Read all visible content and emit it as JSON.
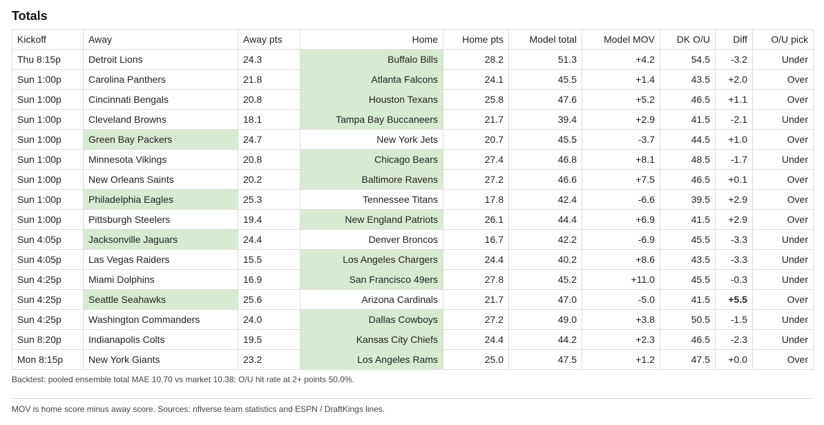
{
  "title": "Totals",
  "columns": [
    "Kickoff",
    "Away",
    "Away pts",
    "Home",
    "Home pts",
    "Model total",
    "Model MOV",
    "DK O/U",
    "Diff",
    "O/U pick"
  ],
  "rows": [
    {
      "kickoff": "Thu 8:15p",
      "away": "Detroit Lions",
      "away_pts": "24.3",
      "home": "Buffalo Bills",
      "home_pts": "28.2",
      "model_total": "51.3",
      "model_mov": "+4.2",
      "dk_ou": "54.5",
      "diff": "-3.2",
      "pick": "Under",
      "winner": "home",
      "diff_bold": false
    },
    {
      "kickoff": "Sun 1:00p",
      "away": "Carolina Panthers",
      "away_pts": "21.8",
      "home": "Atlanta Falcons",
      "home_pts": "24.1",
      "model_total": "45.5",
      "model_mov": "+1.4",
      "dk_ou": "43.5",
      "diff": "+2.0",
      "pick": "Over",
      "winner": "home",
      "diff_bold": false
    },
    {
      "kickoff": "Sun 1:00p",
      "away": "Cincinnati Bengals",
      "away_pts": "20.8",
      "home": "Houston Texans",
      "home_pts": "25.8",
      "model_total": "47.6",
      "model_mov": "+5.2",
      "dk_ou": "46.5",
      "diff": "+1.1",
      "pick": "Over",
      "winner": "home",
      "diff_bold": false
    },
    {
      "kickoff": "Sun 1:00p",
      "away": "Cleveland Browns",
      "away_pts": "18.1",
      "home": "Tampa Bay Buccaneers",
      "home_pts": "21.7",
      "model_total": "39.4",
      "model_mov": "+2.9",
      "dk_ou": "41.5",
      "diff": "-2.1",
      "pick": "Under",
      "winner": "home",
      "diff_bold": false
    },
    {
      "kickoff": "Sun 1:00p",
      "away": "Green Bay Packers",
      "away_pts": "24.7",
      "home": "New York Jets",
      "home_pts": "20.7",
      "model_total": "45.5",
      "model_mov": "-3.7",
      "dk_ou": "44.5",
      "diff": "+1.0",
      "pick": "Over",
      "winner": "away",
      "diff_bold": false
    },
    {
      "kickoff": "Sun 1:00p",
      "away": "Minnesota Vikings",
      "away_pts": "20.8",
      "home": "Chicago Bears",
      "home_pts": "27.4",
      "model_total": "46.8",
      "model_mov": "+8.1",
      "dk_ou": "48.5",
      "diff": "-1.7",
      "pick": "Under",
      "winner": "home",
      "diff_bold": false
    },
    {
      "kickoff": "Sun 1:00p",
      "away": "New Orleans Saints",
      "away_pts": "20.2",
      "home": "Baltimore Ravens",
      "home_pts": "27.2",
      "model_total": "46.6",
      "model_mov": "+7.5",
      "dk_ou": "46.5",
      "diff": "+0.1",
      "pick": "Over",
      "winner": "home",
      "diff_bold": false
    },
    {
      "kickoff": "Sun 1:00p",
      "away": "Philadelphia Eagles",
      "away_pts": "25.3",
      "home": "Tennessee Titans",
      "home_pts": "17.8",
      "model_total": "42.4",
      "model_mov": "-6.6",
      "dk_ou": "39.5",
      "diff": "+2.9",
      "pick": "Over",
      "winner": "away",
      "diff_bold": false
    },
    {
      "kickoff": "Sun 1:00p",
      "away": "Pittsburgh Steelers",
      "away_pts": "19.4",
      "home": "New England Patriots",
      "home_pts": "26.1",
      "model_total": "44.4",
      "model_mov": "+6.9",
      "dk_ou": "41.5",
      "diff": "+2.9",
      "pick": "Over",
      "winner": "home",
      "diff_bold": false
    },
    {
      "kickoff": "Sun 4:05p",
      "away": "Jacksonville Jaguars",
      "away_pts": "24.4",
      "home": "Denver Broncos",
      "home_pts": "16.7",
      "model_total": "42.2",
      "model_mov": "-6.9",
      "dk_ou": "45.5",
      "diff": "-3.3",
      "pick": "Under",
      "winner": "away",
      "diff_bold": false
    },
    {
      "kickoff": "Sun 4:05p",
      "away": "Las Vegas Raiders",
      "away_pts": "15.5",
      "home": "Los Angeles Chargers",
      "home_pts": "24.4",
      "model_total": "40.2",
      "model_mov": "+8.6",
      "dk_ou": "43.5",
      "diff": "-3.3",
      "pick": "Under",
      "winner": "home",
      "diff_bold": false
    },
    {
      "kickoff": "Sun 4:25p",
      "away": "Miami Dolphins",
      "away_pts": "16.9",
      "home": "San Francisco 49ers",
      "home_pts": "27.8",
      "model_total": "45.2",
      "model_mov": "+11.0",
      "dk_ou": "45.5",
      "diff": "-0.3",
      "pick": "Under",
      "winner": "home",
      "diff_bold": false
    },
    {
      "kickoff": "Sun 4:25p",
      "away": "Seattle Seahawks",
      "away_pts": "25.6",
      "home": "Arizona Cardinals",
      "home_pts": "21.7",
      "model_total": "47.0",
      "model_mov": "-5.0",
      "dk_ou": "41.5",
      "diff": "+5.5",
      "pick": "Over",
      "winner": "away",
      "diff_bold": true
    },
    {
      "kickoff": "Sun 4:25p",
      "away": "Washington Commanders",
      "away_pts": "24.0",
      "home": "Dallas Cowboys",
      "home_pts": "27.2",
      "model_total": "49.0",
      "model_mov": "+3.8",
      "dk_ou": "50.5",
      "diff": "-1.5",
      "pick": "Under",
      "winner": "home",
      "diff_bold": false
    },
    {
      "kickoff": "Sun 8:20p",
      "away": "Indianapolis Colts",
      "away_pts": "19.5",
      "home": "Kansas City Chiefs",
      "home_pts": "24.4",
      "model_total": "44.2",
      "model_mov": "+2.3",
      "dk_ou": "46.5",
      "diff": "-2.3",
      "pick": "Under",
      "winner": "home",
      "diff_bold": false
    },
    {
      "kickoff": "Mon 8:15p",
      "away": "New York Giants",
      "away_pts": "23.2",
      "home": "Los Angeles Rams",
      "home_pts": "25.0",
      "model_total": "47.5",
      "model_mov": "+1.2",
      "dk_ou": "47.5",
      "diff": "+0.0",
      "pick": "Over",
      "winner": "home",
      "diff_bold": false
    }
  ],
  "backtest": "Backtest: pooled ensemble total MAE 10.70 vs market 10.38; O/U hit rate at 2+ points 50.0%.",
  "footer": "MOV is home score minus away score. Sources: nflverse team statistics and ESPN / DraftKings lines.",
  "colors": {
    "winner_highlight": "#d9ead3"
  }
}
